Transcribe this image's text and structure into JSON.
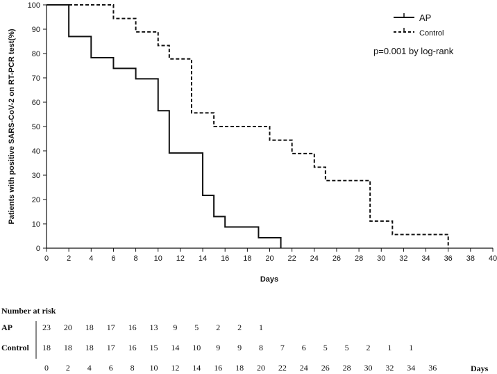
{
  "chart_data": {
    "type": "line",
    "step": true,
    "xlabel": "Days",
    "ylabel": "Patients with positive SARS-CoV-2 on RT-PCR test(%)",
    "xlim": [
      0,
      40
    ],
    "ylim": [
      0,
      100
    ],
    "xticks": [
      0,
      2,
      4,
      6,
      8,
      10,
      12,
      14,
      16,
      18,
      20,
      22,
      24,
      26,
      28,
      30,
      32,
      34,
      36,
      38,
      40
    ],
    "yticks": [
      0,
      10,
      20,
      30,
      40,
      50,
      60,
      70,
      80,
      90,
      100
    ],
    "grid": false,
    "legend_position": "top-right",
    "annotation": "p=0.001 by log-rank",
    "series": [
      {
        "name": "AP",
        "style": "solid",
        "x": [
          0,
          2,
          4,
          6,
          8,
          10,
          11,
          14,
          15,
          16,
          19,
          21
        ],
        "y": [
          100,
          87,
          78.3,
          73.9,
          69.6,
          56.5,
          39.1,
          21.7,
          13,
          8.7,
          4.3,
          0
        ]
      },
      {
        "name": "Control",
        "style": "dashed",
        "x": [
          0,
          6,
          8,
          10,
          11,
          13,
          15,
          20,
          22,
          24,
          25,
          29,
          31,
          36
        ],
        "y": [
          100,
          94.4,
          88.9,
          83.3,
          77.8,
          55.6,
          50,
          44.4,
          38.9,
          33.3,
          27.8,
          11.1,
          5.6,
          0
        ]
      }
    ]
  },
  "risk_table": {
    "title": "Number at risk",
    "days_label": "Days",
    "days": [
      0,
      2,
      4,
      6,
      8,
      10,
      12,
      14,
      16,
      18,
      20,
      22,
      24,
      26,
      28,
      30,
      32,
      34,
      36
    ],
    "rows": [
      {
        "label": "AP",
        "values": [
          "23",
          "20",
          "18",
          "17",
          "16",
          "13",
          "9",
          "5",
          "2",
          "2",
          "1"
        ]
      },
      {
        "label": "Control",
        "values": [
          "18",
          "18",
          "18",
          "17",
          "16",
          "15",
          "14",
          "10",
          "9",
          "9",
          "8",
          "7",
          "6",
          "5",
          "5",
          "2",
          "1",
          "1"
        ]
      }
    ]
  }
}
